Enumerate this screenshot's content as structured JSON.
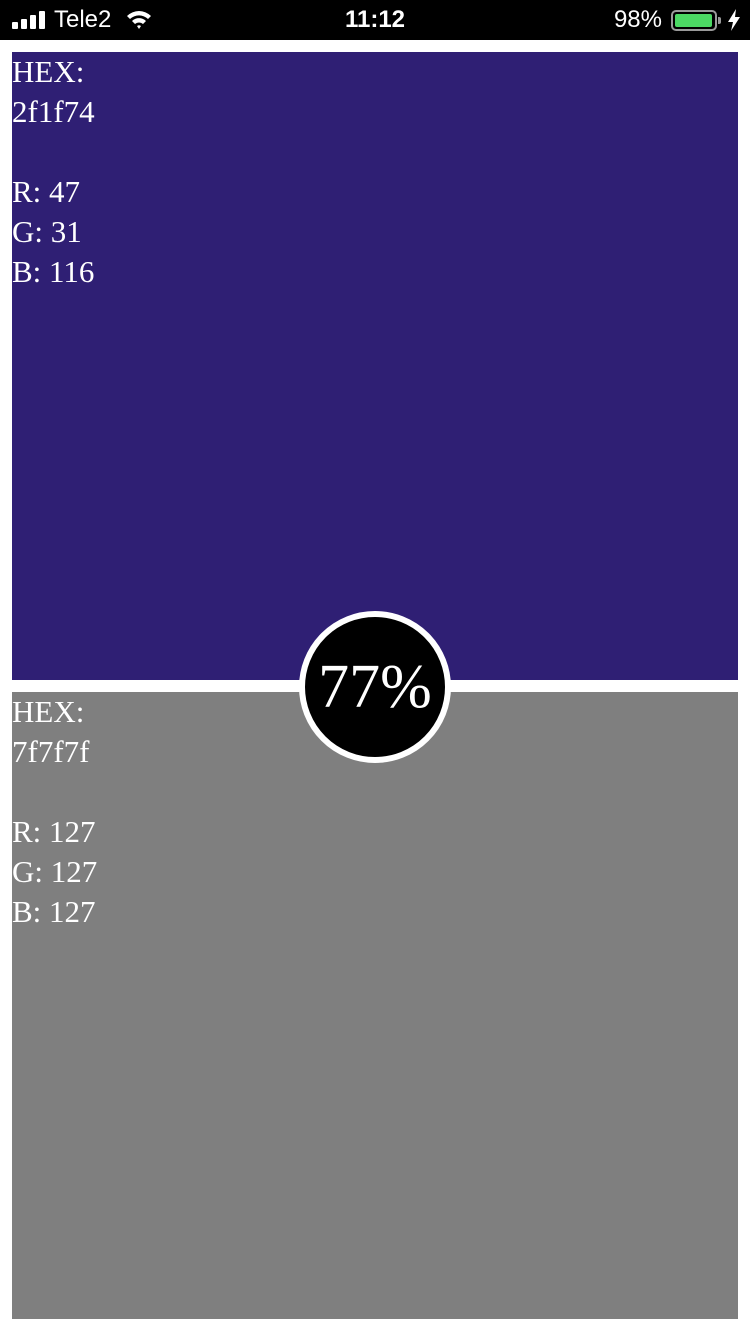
{
  "status_bar": {
    "carrier": "Tele2",
    "time": "11:12",
    "battery_percent": "98%",
    "battery_level": 0.98,
    "signal_bars": 4,
    "icons": [
      "signal-icon",
      "wifi-icon",
      "battery-icon",
      "charging-bolt-icon"
    ]
  },
  "color_top": {
    "background": "#2f1f74",
    "hex_label": "HEX:",
    "hex_value": "2f1f74",
    "r": "R: 47",
    "g": "G: 31",
    "b": "B: 116"
  },
  "color_bottom": {
    "background": "#7f7f7f",
    "hex_label": "HEX:",
    "hex_value": "7f7f7f",
    "r": "R: 127",
    "g": "G: 127",
    "b": "B: 127"
  },
  "match_badge": {
    "value": "77%"
  }
}
